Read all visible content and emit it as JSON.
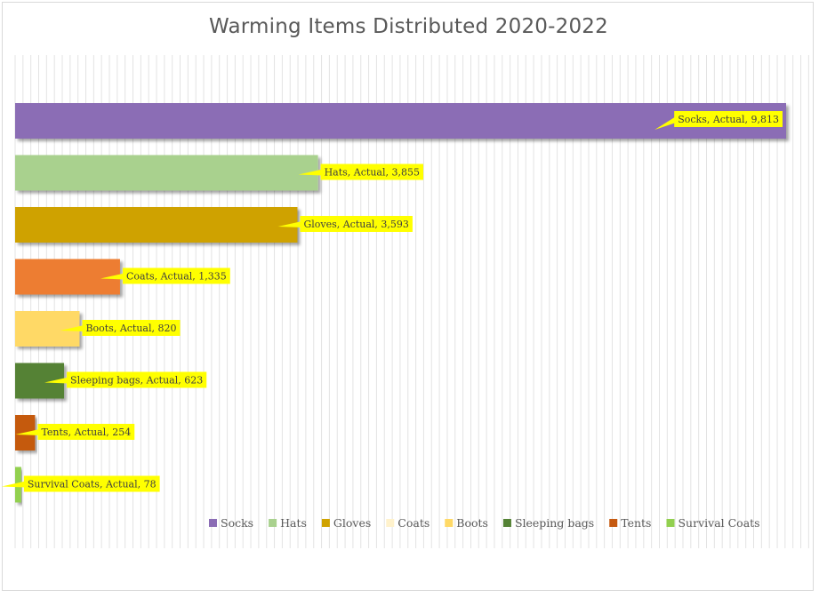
{
  "chart_data": {
    "type": "bar",
    "orientation": "horizontal",
    "title": "Warming Items Distributed 2020-2022",
    "xlabel": "",
    "ylabel": "",
    "xlim": [
      0,
      10000
    ],
    "grid": true,
    "legend_position": "bottom",
    "series_name": "Actual",
    "categories": [
      "Socks",
      "Hats",
      "Gloves",
      "Coats",
      "Boots",
      "Sleeping bags",
      "Tents",
      "Survival Coats"
    ],
    "values": [
      9813,
      3855,
      3593,
      1335,
      820,
      623,
      254,
      78
    ],
    "data_labels": [
      "Socks, Actual,  9,813",
      "Hats, Actual,  3,855",
      "Gloves, Actual,  3,593",
      "Coats, Actual,  1,335",
      "Boots, Actual,  820",
      "Sleeping bags, Actual,  623",
      "Tents, Actual,  254",
      "Survival Coats, Actual,  78"
    ],
    "bar_colors": [
      "#8b6db5",
      "#a9d18e",
      "#cfa200",
      "#ed7d31",
      "#ffd966",
      "#548235",
      "#c55a11",
      "#92d050"
    ],
    "legend": [
      {
        "label": "Socks",
        "color": "#8b6db5"
      },
      {
        "label": "Hats",
        "color": "#a9d18e"
      },
      {
        "label": "Gloves",
        "color": "#cfa200"
      },
      {
        "label": "Coats",
        "color": "#fff2cc"
      },
      {
        "label": "Boots",
        "color": "#ffd966"
      },
      {
        "label": "Sleeping bags",
        "color": "#548235"
      },
      {
        "label": "Tents",
        "color": "#c55a11"
      },
      {
        "label": "Survival Coats",
        "color": "#92d050"
      }
    ],
    "label_background": "#ffff00"
  }
}
